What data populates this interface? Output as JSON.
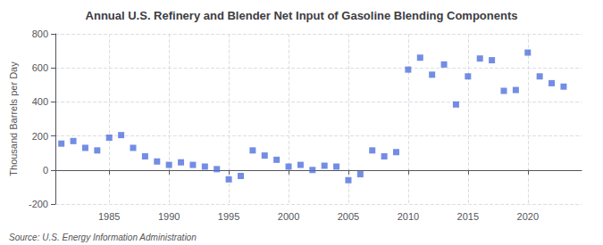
{
  "chart_data": {
    "type": "scatter",
    "title": "Annual U.S. Refinery and Blender Net Input of Gasoline Blending Components",
    "ylabel": "Thousand Barrels per Day",
    "annotations": [
      "Source: U.S. Energy Information Administration"
    ],
    "marker": "square",
    "x": [
      1981,
      1982,
      1983,
      1984,
      1985,
      1986,
      1987,
      1988,
      1989,
      1990,
      1991,
      1992,
      1993,
      1994,
      1995,
      1996,
      1997,
      1998,
      1999,
      2000,
      2001,
      2002,
      2003,
      2004,
      2005,
      2006,
      2007,
      2008,
      2009,
      2010,
      2011,
      2012,
      2013,
      2014,
      2015,
      2016,
      2017,
      2018,
      2019,
      2020,
      2021,
      2022,
      2023
    ],
    "values": [
      155,
      170,
      130,
      115,
      190,
      205,
      130,
      80,
      50,
      30,
      45,
      30,
      20,
      5,
      -55,
      -35,
      115,
      85,
      60,
      20,
      30,
      0,
      25,
      20,
      -60,
      -25,
      115,
      80,
      105,
      590,
      660,
      560,
      620,
      385,
      550,
      655,
      645,
      465,
      470,
      690,
      550,
      510,
      490
    ],
    "xlim": [
      1980.5,
      2024.5
    ],
    "xticks": [
      1985,
      1990,
      1995,
      2000,
      2005,
      2010,
      2015,
      2020
    ],
    "ylim": [
      -200,
      800
    ],
    "yticks": [
      -200,
      0,
      200,
      400,
      600,
      800
    ],
    "grid": true
  }
}
